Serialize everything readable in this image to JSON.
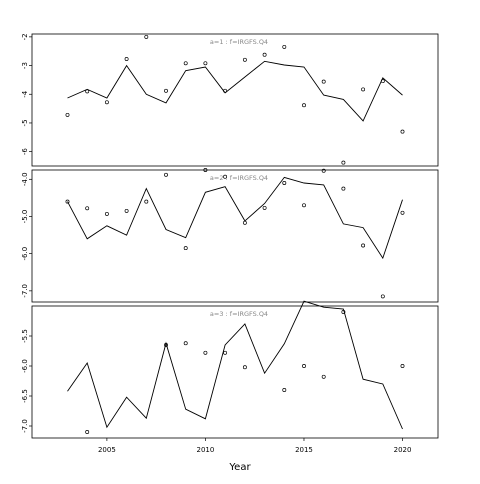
{
  "chart_data": [
    {
      "type": "line",
      "title": "a=1 : f=IRGFS.Q4",
      "ylim": [
        -6.5,
        -1.9
      ],
      "yticks": [
        -2,
        -3,
        -4,
        -5,
        -6
      ],
      "ytick_labels": [
        "-2",
        "-3",
        "-4",
        "-5",
        "-6"
      ],
      "x": [
        2003,
        2004,
        2005,
        2006,
        2007,
        2008,
        2009,
        2010,
        2011,
        2012,
        2013,
        2014,
        2015,
        2016,
        2017,
        2018,
        2019,
        2020
      ],
      "series": [
        {
          "role": "fitted",
          "style": "line",
          "values": [
            -4.13,
            -3.83,
            -4.13,
            -3.0,
            -4.0,
            -4.3,
            -3.18,
            -3.05,
            -3.95,
            -3.4,
            -2.85,
            -2.98,
            -3.05,
            -4.03,
            -4.18,
            -4.93,
            -3.43,
            -4.03
          ]
        },
        {
          "role": "observed",
          "style": "points",
          "values": [
            -4.72,
            -3.9,
            -4.28,
            -2.77,
            -2.0,
            -3.88,
            -2.92,
            -2.92,
            -3.88,
            -2.8,
            -2.62,
            -2.35,
            -4.38,
            -3.56,
            -6.38,
            -3.83,
            -3.54,
            -5.3
          ]
        }
      ]
    },
    {
      "type": "line",
      "title": "a=2 : f=IRGFS.Q4",
      "ylim": [
        -7.3,
        -3.75
      ],
      "yticks": [
        -4,
        -5,
        -6,
        -7
      ],
      "ytick_labels": [
        "-4.0",
        "-5.0",
        "-6.0",
        "-7.0"
      ],
      "x": [
        2003,
        2004,
        2005,
        2006,
        2007,
        2008,
        2009,
        2010,
        2011,
        2012,
        2013,
        2014,
        2015,
        2016,
        2017,
        2018,
        2019,
        2020
      ],
      "series": [
        {
          "role": "fitted",
          "style": "line",
          "values": [
            -4.6,
            -5.6,
            -5.25,
            -5.5,
            -4.25,
            -5.35,
            -5.57,
            -4.35,
            -4.2,
            -5.12,
            -4.65,
            -3.95,
            -4.1,
            -4.15,
            -5.2,
            -5.3,
            -6.12,
            -4.55
          ]
        },
        {
          "role": "observed",
          "style": "points",
          "values": [
            -4.6,
            -4.78,
            -4.93,
            -4.85,
            -4.6,
            -3.88,
            -5.85,
            -3.75,
            -3.93,
            -5.17,
            -4.77,
            -4.1,
            -4.7,
            -3.77,
            -4.25,
            -5.78,
            -7.15,
            -4.9
          ]
        }
      ]
    },
    {
      "type": "line",
      "title": "a=3 : f=IRGFS.Q4",
      "ylim": [
        -7.2,
        -5.0
      ],
      "yticks": [
        -5.5,
        -6,
        -6.5,
        -7
      ],
      "ytick_labels": [
        "-5.5",
        "-6.0",
        "-6.5",
        "-7.0"
      ],
      "x": [
        2003,
        2004,
        2005,
        2006,
        2007,
        2008,
        2009,
        2010,
        2011,
        2012,
        2013,
        2014,
        2015,
        2016,
        2017,
        2018,
        2019,
        2020
      ],
      "series": [
        {
          "role": "fitted",
          "style": "line",
          "values": [
            -6.42,
            -5.95,
            -7.02,
            -6.52,
            -6.87,
            -5.62,
            -6.72,
            -6.88,
            -5.65,
            -5.3,
            -6.12,
            -5.63,
            -4.92,
            -5.02,
            -5.05,
            -6.22,
            -6.3,
            -7.05
          ]
        },
        {
          "role": "observed",
          "style": "points",
          "values": [
            null,
            -7.1,
            null,
            null,
            null,
            -5.65,
            -5.62,
            -5.78,
            -5.78,
            -6.02,
            null,
            -6.4,
            -6.0,
            -6.18,
            -5.1,
            null,
            null,
            -6.0
          ]
        }
      ]
    }
  ],
  "x_axis": {
    "label": "Year",
    "ticks": [
      2005,
      2010,
      2015,
      2020
    ],
    "tick_labels": [
      "2005",
      "2010",
      "2015",
      "2020"
    ],
    "xlim": [
      2001.2,
      2021.8
    ]
  }
}
